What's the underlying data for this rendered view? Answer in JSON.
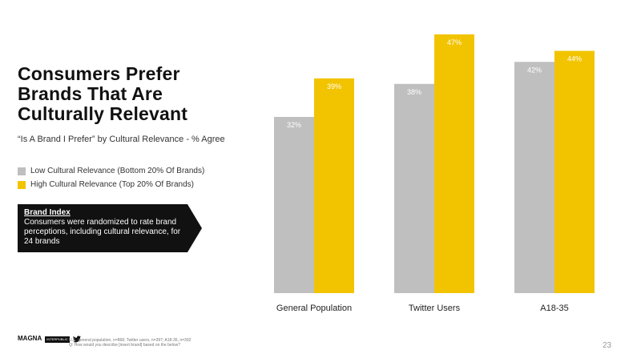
{
  "slide": {
    "title_lines": [
      "Consumers Prefer",
      "Brands That Are",
      "Culturally Relevant"
    ],
    "subtitle": "“Is A Brand I Prefer” by Cultural Relevance - % Agree",
    "page_number": "23"
  },
  "callout": {
    "heading": "Brand Index",
    "text": "Consumers were randomized to rate brand perceptions, including cultural relevance, for 24 brands"
  },
  "footer": {
    "logo": "MAGNA",
    "logo_box": "INTERPUBLIC",
    "note_line1": "U.S. general population, n=868; Twitter users, n=397; A18-35, n=392",
    "note_line2": "Q: How would you describe [insert brand] based on the below?"
  },
  "colors": {
    "low": "#bfbfbf",
    "high": "#f2c400",
    "text": "#1a1a1a"
  },
  "icons": {
    "twitter": "twitter-bird-icon"
  },
  "chart_data": {
    "type": "bar",
    "categories": [
      "General Population",
      "Twitter Users",
      "A18-35"
    ],
    "series": [
      {
        "name": "Low Cultural Relevance (Bottom 20% Of Brands)",
        "values": [
          32,
          38,
          42
        ],
        "labels": [
          "32%",
          "38%",
          "42%"
        ],
        "color": "#bfbfbf"
      },
      {
        "name": "High Cultural Relevance (Top 20% Of Brands)",
        "values": [
          39,
          47,
          44
        ],
        "labels": [
          "39%",
          "47%",
          "44%"
        ],
        "color": "#f2c400"
      }
    ],
    "ylim": [
      0,
      48
    ],
    "grid": false,
    "legend": "left",
    "value_label_position": "inside-top"
  }
}
